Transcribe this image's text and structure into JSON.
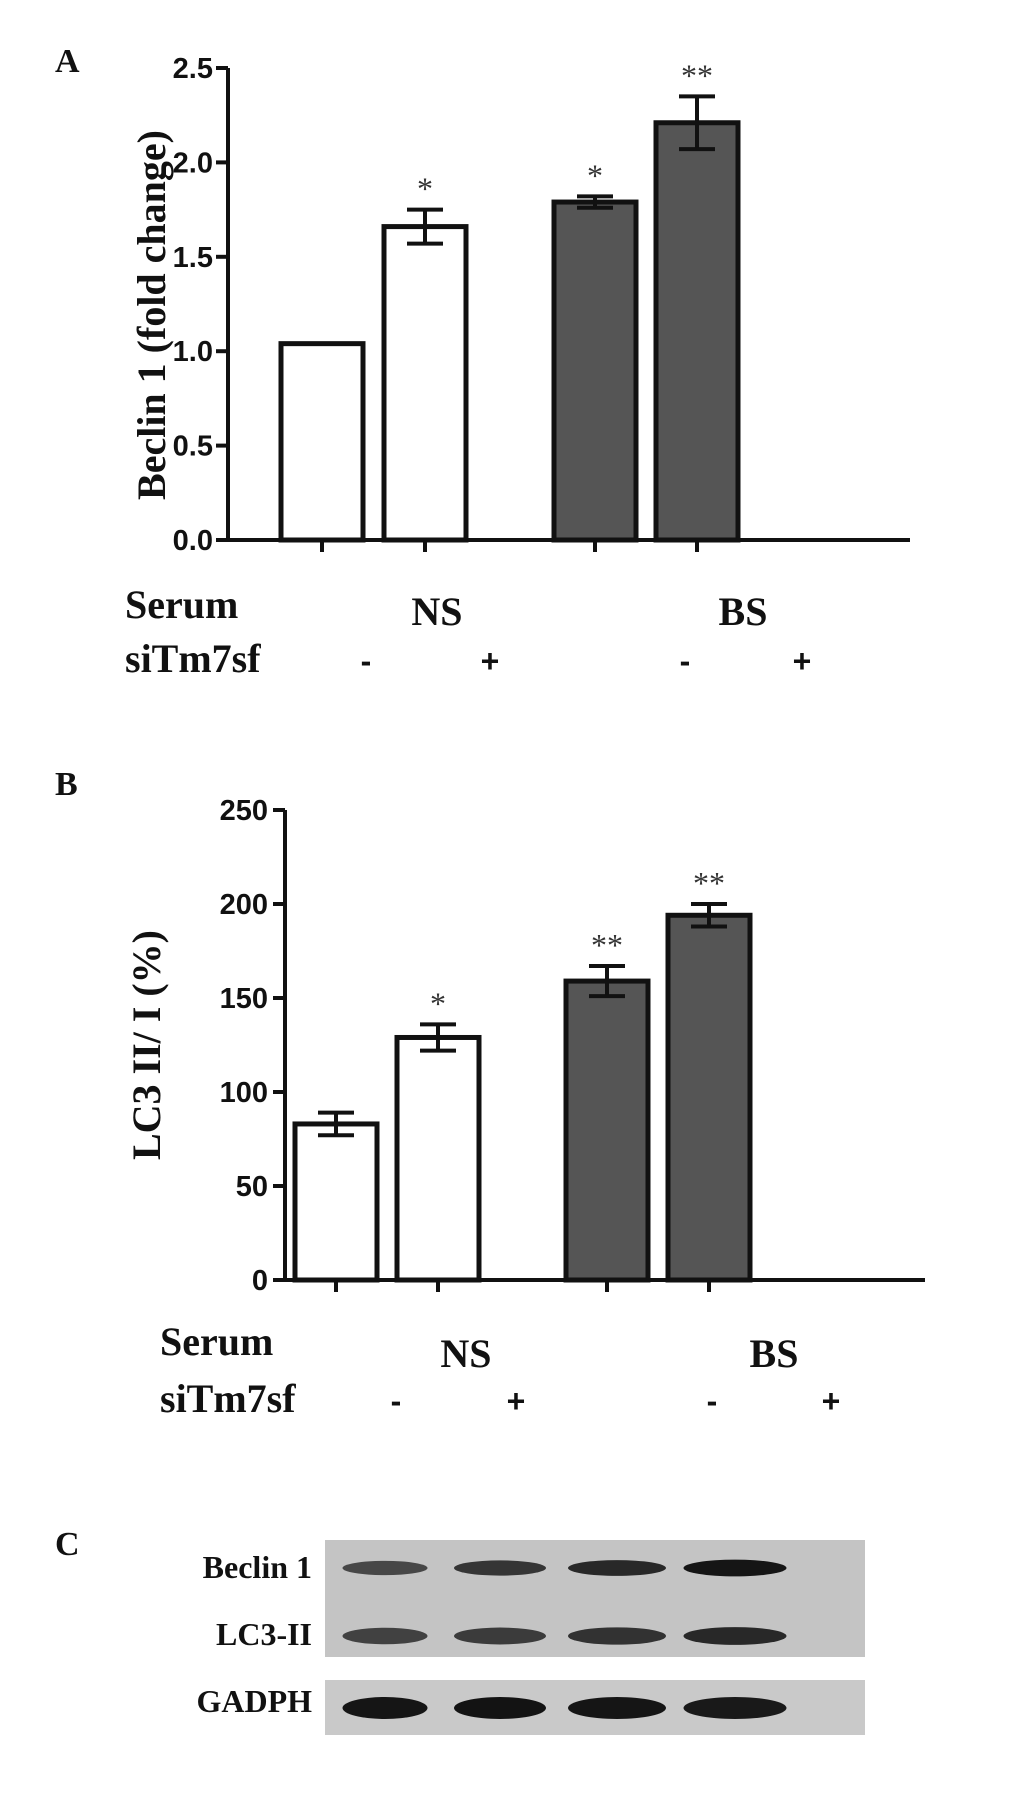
{
  "figure": {
    "panels": [
      {
        "letter": "A"
      },
      {
        "letter": "B"
      },
      {
        "letter": "C"
      }
    ]
  },
  "chart_data": [
    {
      "type": "bar",
      "panel": "A",
      "categories": [
        "NS -",
        "NS +",
        "BS -",
        "BS +"
      ],
      "values": [
        1.04,
        1.66,
        1.79,
        2.21
      ],
      "errors": [
        0,
        0.09,
        0.03,
        0.14
      ],
      "significance": [
        "",
        "*",
        "*",
        "**"
      ],
      "bar_colors": [
        "#ffffff",
        "#ffffff",
        "#555555",
        "#555555"
      ],
      "ylabel": "Beclin 1 (fold change)",
      "xlabel": "",
      "ylim": [
        0,
        2.5
      ],
      "yticks": [
        0.0,
        0.5,
        1.0,
        1.5,
        2.0,
        2.5
      ],
      "ytick_labels": [
        "0.0",
        "0.5",
        "1.0",
        "1.5",
        "2.0",
        "2.5"
      ],
      "grid": false,
      "rows": [
        {
          "label": "Serum",
          "group_labels": [
            "NS",
            "BS"
          ]
        },
        {
          "label": "siTm7sf",
          "signs": [
            "-",
            "+",
            "-",
            "+"
          ]
        }
      ]
    },
    {
      "type": "bar",
      "panel": "B",
      "categories": [
        "NS -",
        "NS +",
        "BS -",
        "BS +"
      ],
      "values": [
        83,
        129,
        159,
        194
      ],
      "errors": [
        6,
        7,
        8,
        6
      ],
      "significance": [
        "",
        "*",
        "**",
        "**"
      ],
      "bar_colors": [
        "#ffffff",
        "#ffffff",
        "#555555",
        "#555555"
      ],
      "ylabel": "LC3 II/ I (%)",
      "xlabel": "",
      "ylim": [
        0,
        250
      ],
      "yticks": [
        0,
        50,
        100,
        150,
        200,
        250
      ],
      "ytick_labels": [
        "0",
        "50",
        "100",
        "150",
        "200",
        "250"
      ],
      "grid": false,
      "rows": [
        {
          "label": "Serum",
          "group_labels": [
            "NS",
            "BS"
          ]
        },
        {
          "label": "siTm7sf",
          "signs": [
            "-",
            "+",
            "-",
            "+"
          ]
        }
      ]
    }
  ],
  "blot": {
    "labels": [
      "Beclin 1",
      "LC3-II",
      "GADPH"
    ],
    "band_intensity": [
      [
        0.55,
        0.7,
        0.8,
        0.95
      ],
      [
        0.6,
        0.65,
        0.72,
        0.8
      ],
      [
        0.95,
        0.97,
        0.95,
        0.92
      ]
    ]
  }
}
